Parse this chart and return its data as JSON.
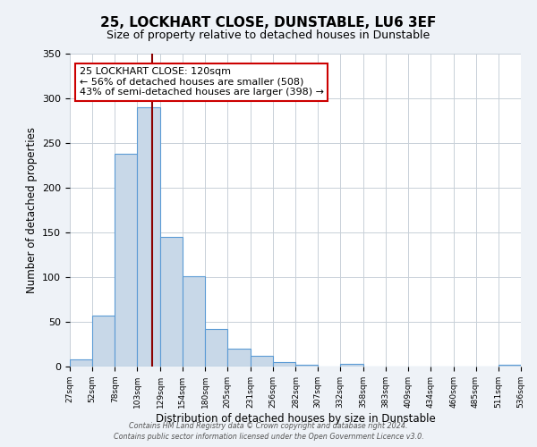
{
  "title": "25, LOCKHART CLOSE, DUNSTABLE, LU6 3EF",
  "subtitle": "Size of property relative to detached houses in Dunstable",
  "xlabel": "Distribution of detached houses by size in Dunstable",
  "ylabel": "Number of detached properties",
  "bin_edges": [
    27,
    52,
    78,
    103,
    129,
    154,
    180,
    205,
    231,
    256,
    282,
    307,
    332,
    358,
    383,
    409,
    434,
    460,
    485,
    511,
    536
  ],
  "bin_counts": [
    8,
    57,
    238,
    290,
    145,
    101,
    42,
    20,
    12,
    5,
    2,
    0,
    3,
    0,
    0,
    0,
    0,
    0,
    0,
    2
  ],
  "bar_color": "#c8d8e8",
  "bar_edge_color": "#5b9bd5",
  "property_size": 120,
  "property_line_color": "#8b0000",
  "annotation_text": "25 LOCKHART CLOSE: 120sqm\n← 56% of detached houses are smaller (508)\n43% of semi-detached houses are larger (398) →",
  "annotation_box_color": "#ffffff",
  "annotation_box_edge_color": "#cc0000",
  "ylim": [
    0,
    350
  ],
  "yticks": [
    0,
    50,
    100,
    150,
    200,
    250,
    300,
    350
  ],
  "footer_line1": "Contains HM Land Registry data © Crown copyright and database right 2024.",
  "footer_line2": "Contains public sector information licensed under the Open Government Licence v3.0.",
  "bg_color": "#eef2f7",
  "plot_bg_color": "#ffffff",
  "grid_color": "#c8d0d8"
}
